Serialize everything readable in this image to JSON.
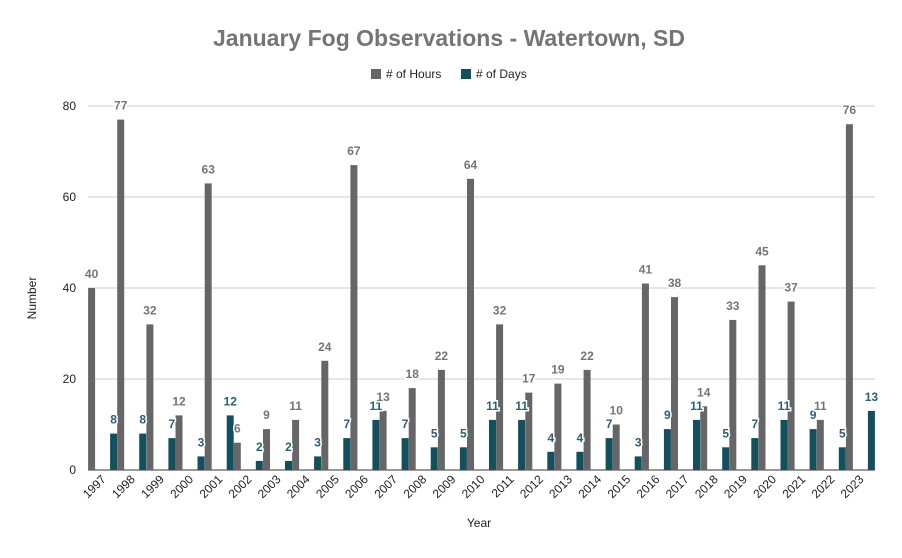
{
  "chart_data": {
    "type": "bar",
    "title": "January Fog Observations - Watertown, SD",
    "xlabel": "Year",
    "ylabel": "Number",
    "ylim": [
      0,
      80
    ],
    "yticks": [
      "0",
      "20",
      "40",
      "60",
      "80"
    ],
    "grid": true,
    "legend_position": "top",
    "categories": [
      "1997",
      "1998",
      "1999",
      "2000",
      "2001",
      "2002",
      "2003",
      "2004",
      "2005",
      "2006",
      "2007",
      "2008",
      "2009",
      "2010",
      "2011",
      "2012",
      "2013",
      "2014",
      "2015",
      "2016",
      "2017",
      "2018",
      "2019",
      "2020",
      "2021",
      "2022",
      "2023"
    ],
    "series": [
      {
        "name": "# of Hours",
        "color": "#666666",
        "label_color": "#757575",
        "values": [
          40,
          77,
          32,
          12,
          63,
          6,
          9,
          11,
          24,
          67,
          13,
          18,
          22,
          64,
          32,
          17,
          19,
          22,
          10,
          41,
          38,
          14,
          33,
          45,
          37,
          11,
          76
        ]
      },
      {
        "name": "# of Days",
        "color": "#134f5c",
        "label_color": "#2e5f73",
        "values": [
          8,
          8,
          7,
          3,
          12,
          2,
          2,
          3,
          7,
          11,
          7,
          5,
          5,
          11,
          11,
          4,
          4,
          7,
          3,
          9,
          11,
          5,
          7,
          11,
          9,
          5,
          13
        ]
      }
    ]
  }
}
